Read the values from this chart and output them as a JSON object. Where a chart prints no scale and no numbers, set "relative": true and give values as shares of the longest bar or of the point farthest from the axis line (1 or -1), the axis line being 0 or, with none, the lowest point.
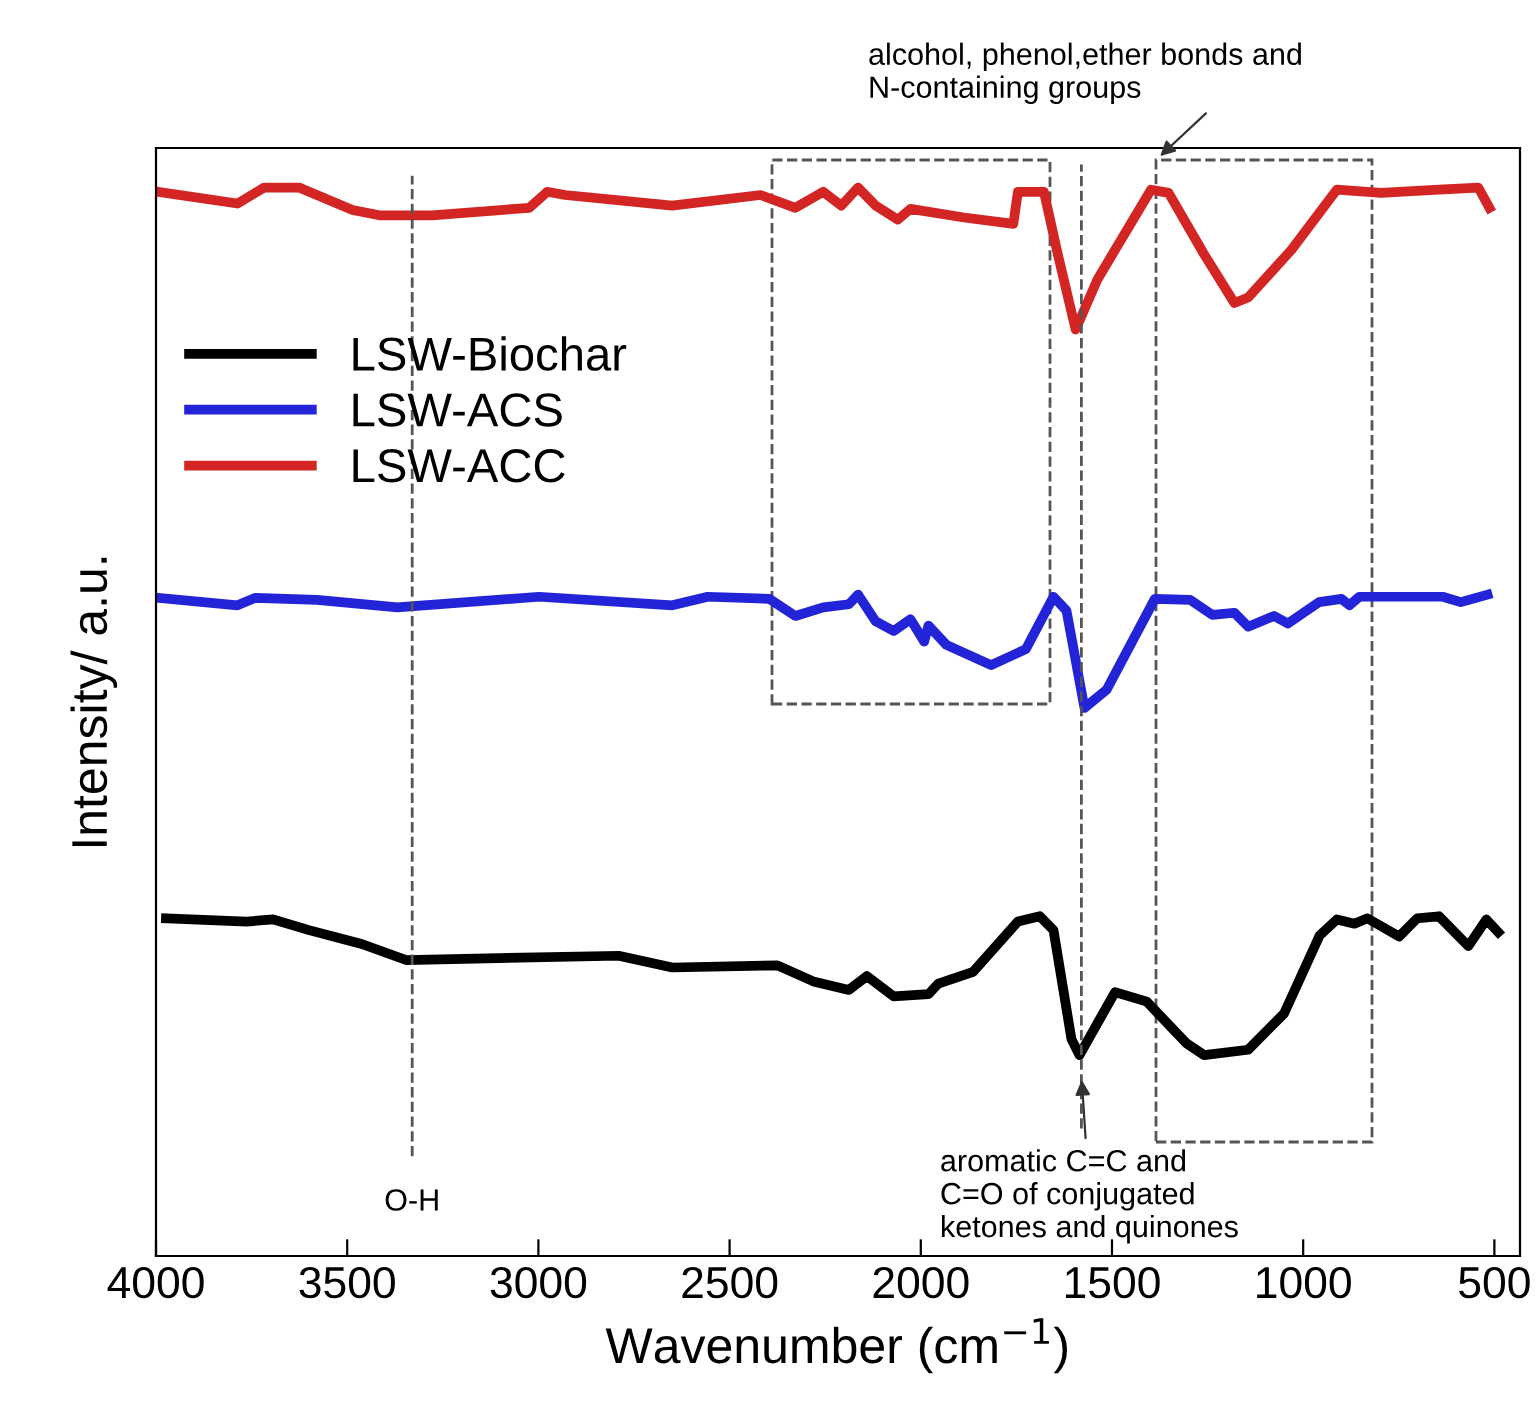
{
  "chart_data": {
    "type": "line",
    "relative": true,
    "xlabel": "Wavenumber (cm$^{−1}$)",
    "ylabel": "Intensity/ a.u.",
    "xlim": [
      4000,
      433
    ],
    "xticks": [
      4000,
      3500,
      3000,
      2500,
      2000,
      1500,
      1000,
      500
    ],
    "legend": "top left",
    "grid": false,
    "line_style": "solid",
    "series": [
      {
        "name": "LSW-Biochar",
        "color": "#000000",
        "x": [
          3974,
          3763,
          3694,
          3600,
          3462,
          3346,
          2790,
          2650,
          2375,
          2281,
          2188,
          2141,
          2071,
          1980,
          1954,
          1863,
          1746,
          1689,
          1653,
          1606,
          1585,
          1492,
          1409,
          1305,
          1259,
          1144,
          1050,
          957,
          912,
          866,
          832,
          749,
          702,
          645,
          568,
          521,
          490
        ],
        "values": [
          0.316,
          0.313,
          0.315,
          0.305,
          0.292,
          0.277,
          0.281,
          0.27,
          0.272,
          0.257,
          0.249,
          0.262,
          0.243,
          0.245,
          0.255,
          0.266,
          0.313,
          0.318,
          0.305,
          0.203,
          0.188,
          0.247,
          0.238,
          0.199,
          0.188,
          0.193,
          0.227,
          0.3,
          0.315,
          0.311,
          0.316,
          0.299,
          0.316,
          0.318,
          0.29,
          0.315,
          0.303
        ]
      },
      {
        "name": "LSW-ACS",
        "color": "#2323d8",
        "x": [
          3995,
          3787,
          3740,
          3579,
          3369,
          2998,
          2650,
          2557,
          2396,
          2328,
          2255,
          2188,
          2164,
          2118,
          2071,
          2027,
          1991,
          1980,
          1933,
          1816,
          1725,
          1653,
          1619,
          1572,
          1514,
          1388,
          1295,
          1237,
          1180,
          1144,
          1076,
          1040,
          958,
          900,
          879,
          853,
          635,
          588,
          518
        ],
        "values": [
          0.616,
          0.609,
          0.616,
          0.614,
          0.607,
          0.617,
          0.609,
          0.617,
          0.615,
          0.599,
          0.607,
          0.61,
          0.619,
          0.594,
          0.585,
          0.596,
          0.575,
          0.59,
          0.572,
          0.553,
          0.568,
          0.617,
          0.604,
          0.513,
          0.53,
          0.615,
          0.614,
          0.6,
          0.602,
          0.589,
          0.599,
          0.592,
          0.612,
          0.615,
          0.609,
          0.617,
          0.617,
          0.612,
          0.619
        ]
      },
      {
        "name": "LSW-ACC",
        "color": "#d42525",
        "x": [
          3995,
          3787,
          3717,
          3626,
          3486,
          3416,
          3278,
          3024,
          2977,
          2930,
          2650,
          2419,
          2328,
          2255,
          2208,
          2164,
          2118,
          2060,
          2027,
          1887,
          1758,
          1746,
          1678,
          1642,
          1595,
          1538,
          1398,
          1352,
          1260,
          1180,
          1144,
          1030,
          912,
          796,
          645,
          542,
          513
        ],
        "values": [
          0.996,
          0.985,
          1.0,
          1.0,
          0.979,
          0.974,
          0.974,
          0.981,
          0.996,
          0.993,
          0.983,
          0.993,
          0.981,
          0.996,
          0.983,
          1.0,
          0.983,
          0.97,
          0.98,
          0.972,
          0.966,
          0.996,
          0.996,
          0.938,
          0.867,
          0.914,
          0.998,
          0.995,
          0.938,
          0.892,
          0.897,
          0.942,
          0.998,
          0.995,
          0.998,
          1.0,
          0.981
        ]
      }
    ],
    "ref_lines": [
      {
        "axis": "x",
        "value": 3330,
        "label": "O-H",
        "color": "#555555",
        "line_style": "dashed"
      },
      {
        "axis": "x",
        "value": 1580,
        "label": null,
        "color": "#555555",
        "line_style": "dashed"
      }
    ],
    "annotations": [
      {
        "text": "aromatic C=C and\nC=O of conjugated\nketones and quinones",
        "x": 1580,
        "y": 0.17
      },
      "alcohol, phenol,ether bonds and\nN-containing groups"
    ]
  }
}
